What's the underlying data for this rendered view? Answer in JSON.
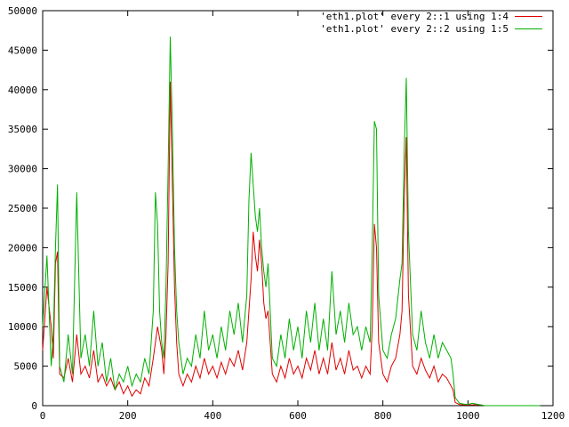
{
  "chart_data": {
    "type": "line",
    "title": "",
    "xlabel": "",
    "ylabel": "",
    "xlim": [
      0,
      1200
    ],
    "ylim": [
      0,
      50000
    ],
    "x_ticks": [
      0,
      200,
      400,
      600,
      800,
      1000,
      1200
    ],
    "y_ticks": [
      0,
      5000,
      10000,
      15000,
      20000,
      25000,
      30000,
      35000,
      40000,
      45000,
      50000
    ],
    "grid": false,
    "legend_position": "top-right",
    "series": [
      {
        "name": "'eth1.plot' every 2::1 using 1:4",
        "color": "#e00000",
        "points": [
          [
            0,
            7000
          ],
          [
            10,
            15000
          ],
          [
            20,
            10000
          ],
          [
            25,
            6000
          ],
          [
            30,
            18000
          ],
          [
            35,
            19500
          ],
          [
            40,
            4000
          ],
          [
            50,
            3500
          ],
          [
            60,
            6000
          ],
          [
            70,
            3000
          ],
          [
            80,
            9000
          ],
          [
            90,
            4000
          ],
          [
            100,
            5000
          ],
          [
            110,
            3500
          ],
          [
            120,
            7000
          ],
          [
            130,
            3000
          ],
          [
            140,
            4000
          ],
          [
            150,
            2500
          ],
          [
            160,
            3500
          ],
          [
            170,
            2000
          ],
          [
            180,
            3000
          ],
          [
            190,
            1500
          ],
          [
            200,
            2500
          ],
          [
            210,
            1200
          ],
          [
            220,
            2000
          ],
          [
            230,
            1500
          ],
          [
            240,
            3500
          ],
          [
            250,
            2500
          ],
          [
            260,
            6000
          ],
          [
            270,
            10000
          ],
          [
            280,
            7000
          ],
          [
            285,
            4000
          ],
          [
            290,
            9000
          ],
          [
            295,
            18000
          ],
          [
            300,
            41000
          ],
          [
            305,
            28000
          ],
          [
            310,
            15000
          ],
          [
            315,
            8000
          ],
          [
            320,
            4000
          ],
          [
            330,
            2500
          ],
          [
            340,
            4000
          ],
          [
            350,
            3000
          ],
          [
            360,
            5000
          ],
          [
            370,
            3500
          ],
          [
            380,
            6000
          ],
          [
            390,
            4000
          ],
          [
            400,
            5000
          ],
          [
            410,
            3500
          ],
          [
            420,
            5500
          ],
          [
            430,
            4000
          ],
          [
            440,
            6000
          ],
          [
            450,
            5000
          ],
          [
            460,
            7000
          ],
          [
            470,
            4500
          ],
          [
            480,
            8000
          ],
          [
            490,
            16000
          ],
          [
            495,
            22000
          ],
          [
            500,
            19000
          ],
          [
            505,
            17000
          ],
          [
            510,
            21000
          ],
          [
            515,
            18000
          ],
          [
            520,
            13000
          ],
          [
            525,
            11000
          ],
          [
            530,
            12000
          ],
          [
            535,
            8000
          ],
          [
            540,
            4000
          ],
          [
            550,
            3000
          ],
          [
            560,
            5000
          ],
          [
            570,
            3500
          ],
          [
            580,
            6000
          ],
          [
            590,
            4000
          ],
          [
            600,
            5000
          ],
          [
            610,
            3500
          ],
          [
            620,
            6000
          ],
          [
            630,
            4500
          ],
          [
            640,
            7000
          ],
          [
            650,
            4000
          ],
          [
            660,
            6000
          ],
          [
            670,
            4000
          ],
          [
            680,
            8000
          ],
          [
            690,
            4500
          ],
          [
            700,
            6000
          ],
          [
            710,
            4000
          ],
          [
            720,
            7000
          ],
          [
            730,
            4500
          ],
          [
            740,
            5000
          ],
          [
            750,
            3500
          ],
          [
            760,
            5000
          ],
          [
            770,
            4000
          ],
          [
            775,
            10000
          ],
          [
            780,
            23000
          ],
          [
            785,
            20000
          ],
          [
            790,
            8000
          ],
          [
            800,
            4000
          ],
          [
            810,
            3000
          ],
          [
            820,
            5000
          ],
          [
            830,
            6000
          ],
          [
            840,
            9000
          ],
          [
            845,
            12000
          ],
          [
            850,
            26000
          ],
          [
            855,
            34000
          ],
          [
            860,
            14000
          ],
          [
            870,
            5000
          ],
          [
            880,
            4000
          ],
          [
            890,
            6000
          ],
          [
            900,
            4500
          ],
          [
            910,
            3500
          ],
          [
            920,
            5000
          ],
          [
            930,
            3000
          ],
          [
            940,
            4000
          ],
          [
            950,
            3500
          ],
          [
            960,
            2500
          ],
          [
            965,
            2000
          ],
          [
            970,
            400
          ],
          [
            980,
            150
          ],
          [
            990,
            100
          ],
          [
            1000,
            100
          ],
          [
            1010,
            100
          ],
          [
            1020,
            150
          ],
          [
            1030,
            80
          ],
          [
            1040,
            0
          ],
          [
            1100,
            0
          ],
          [
            1170,
            0
          ]
        ]
      },
      {
        "name": "'eth1.plot' every 2::2 using 1:5",
        "color": "#00b000",
        "points": [
          [
            0,
            10000
          ],
          [
            10,
            19000
          ],
          [
            15,
            12000
          ],
          [
            20,
            5000
          ],
          [
            25,
            9000
          ],
          [
            30,
            20000
          ],
          [
            35,
            28000
          ],
          [
            40,
            5000
          ],
          [
            50,
            3000
          ],
          [
            60,
            9000
          ],
          [
            70,
            4000
          ],
          [
            80,
            27000
          ],
          [
            90,
            6000
          ],
          [
            100,
            9000
          ],
          [
            110,
            5000
          ],
          [
            120,
            12000
          ],
          [
            130,
            5000
          ],
          [
            140,
            8000
          ],
          [
            150,
            3000
          ],
          [
            160,
            6000
          ],
          [
            170,
            2000
          ],
          [
            180,
            4000
          ],
          [
            190,
            3000
          ],
          [
            200,
            5000
          ],
          [
            210,
            2500
          ],
          [
            220,
            4000
          ],
          [
            230,
            3000
          ],
          [
            240,
            6000
          ],
          [
            250,
            4000
          ],
          [
            260,
            12000
          ],
          [
            265,
            27000
          ],
          [
            270,
            23000
          ],
          [
            275,
            12000
          ],
          [
            280,
            8000
          ],
          [
            285,
            6000
          ],
          [
            290,
            15000
          ],
          [
            295,
            30000
          ],
          [
            300,
            46700
          ],
          [
            305,
            35000
          ],
          [
            310,
            20000
          ],
          [
            315,
            12000
          ],
          [
            320,
            8000
          ],
          [
            330,
            4000
          ],
          [
            340,
            6000
          ],
          [
            350,
            5000
          ],
          [
            360,
            9000
          ],
          [
            370,
            6000
          ],
          [
            380,
            12000
          ],
          [
            390,
            7000
          ],
          [
            400,
            9000
          ],
          [
            410,
            6000
          ],
          [
            420,
            10000
          ],
          [
            430,
            7000
          ],
          [
            440,
            12000
          ],
          [
            450,
            9000
          ],
          [
            460,
            13000
          ],
          [
            470,
            8000
          ],
          [
            480,
            14000
          ],
          [
            485,
            26000
          ],
          [
            490,
            32000
          ],
          [
            495,
            28000
          ],
          [
            500,
            24000
          ],
          [
            505,
            22000
          ],
          [
            510,
            25000
          ],
          [
            515,
            20000
          ],
          [
            520,
            17000
          ],
          [
            525,
            15000
          ],
          [
            530,
            18000
          ],
          [
            535,
            12000
          ],
          [
            540,
            6000
          ],
          [
            550,
            5000
          ],
          [
            560,
            9000
          ],
          [
            570,
            6000
          ],
          [
            580,
            11000
          ],
          [
            590,
            7000
          ],
          [
            600,
            10000
          ],
          [
            610,
            6000
          ],
          [
            620,
            12000
          ],
          [
            630,
            8000
          ],
          [
            640,
            13000
          ],
          [
            650,
            7000
          ],
          [
            660,
            11000
          ],
          [
            670,
            7000
          ],
          [
            680,
            17000
          ],
          [
            690,
            9000
          ],
          [
            700,
            12000
          ],
          [
            710,
            8000
          ],
          [
            720,
            13000
          ],
          [
            730,
            9000
          ],
          [
            740,
            10000
          ],
          [
            750,
            7000
          ],
          [
            760,
            10000
          ],
          [
            770,
            8000
          ],
          [
            775,
            20000
          ],
          [
            780,
            36000
          ],
          [
            785,
            35000
          ],
          [
            790,
            14000
          ],
          [
            800,
            7000
          ],
          [
            810,
            6000
          ],
          [
            820,
            9000
          ],
          [
            830,
            11000
          ],
          [
            840,
            16000
          ],
          [
            845,
            18000
          ],
          [
            850,
            32000
          ],
          [
            855,
            41500
          ],
          [
            860,
            22000
          ],
          [
            870,
            9000
          ],
          [
            880,
            7000
          ],
          [
            890,
            12000
          ],
          [
            900,
            8000
          ],
          [
            910,
            6000
          ],
          [
            920,
            9000
          ],
          [
            930,
            6000
          ],
          [
            940,
            8000
          ],
          [
            950,
            7000
          ],
          [
            960,
            6000
          ],
          [
            965,
            4000
          ],
          [
            970,
            1000
          ],
          [
            980,
            300
          ],
          [
            990,
            200
          ],
          [
            1000,
            150
          ],
          [
            1010,
            300
          ],
          [
            1020,
            200
          ],
          [
            1030,
            100
          ],
          [
            1040,
            0
          ],
          [
            1100,
            0
          ],
          [
            1170,
            0
          ]
        ]
      }
    ]
  }
}
